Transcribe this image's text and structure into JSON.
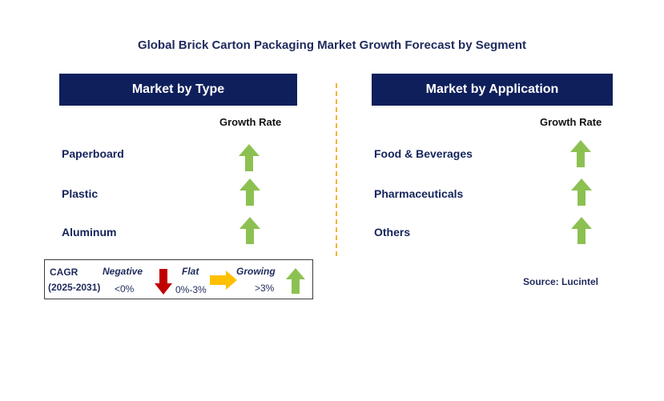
{
  "chart_data": {
    "type": "table",
    "title": "Global Brick Carton Packaging Market Growth Forecast by Segment",
    "panels": [
      {
        "header": "Market by Type",
        "column_header": "Growth Rate",
        "rows": [
          {
            "label": "Paperboard",
            "trend": "growing"
          },
          {
            "label": "Plastic",
            "trend": "growing"
          },
          {
            "label": "Aluminum",
            "trend": "growing"
          }
        ]
      },
      {
        "header": "Market by Application",
        "column_header": "Growth Rate",
        "rows": [
          {
            "label": "Food & Beverages",
            "trend": "growing"
          },
          {
            "label": "Pharmaceuticals",
            "trend": "growing"
          },
          {
            "label": "Others",
            "trend": "growing"
          }
        ]
      }
    ],
    "legend": {
      "cagr_label": "CAGR",
      "period": "(2025-2031)",
      "items": [
        {
          "name": "Negative",
          "range": "<0%",
          "icon": "arrow-down-icon",
          "color": "#c00000"
        },
        {
          "name": "Flat",
          "range": "0%-3%",
          "icon": "arrow-right-icon",
          "color": "#ffc000"
        },
        {
          "name": "Growing",
          "range": ">3%",
          "icon": "arrow-up-icon",
          "color": "#8cc152"
        }
      ]
    },
    "source": "Source: Lucintel"
  },
  "colors": {
    "header_bg": "#0f1f5c",
    "title": "#1f2a5c",
    "growing": "#8cc152",
    "negative": "#c00000",
    "flat": "#ffc000",
    "divider": "#f2b632"
  }
}
